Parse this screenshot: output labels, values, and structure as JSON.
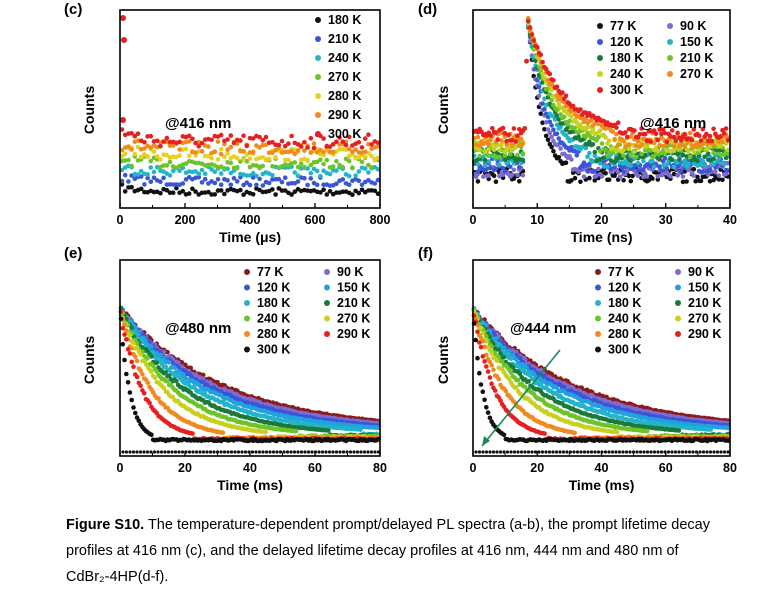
{
  "caption": {
    "label": "Figure S10.",
    "text": "The temperature-dependent prompt/delayed PL spectra (a-b), the prompt lifetime decay profiles at 416 nm (c), and the delayed lifetime decay profiles at 416 nm, 444 nm and 480 nm of CdBr₂-4HP(d-f)."
  },
  "chart_data": [
    {
      "panel": "(c)",
      "type": "scatter",
      "annotation": "@416 nm",
      "xlabel": "Time (μs)",
      "ylabel": "Counts",
      "xlim": [
        0,
        800
      ],
      "xticks": [
        "0",
        "200",
        "400",
        "600",
        "800"
      ],
      "legend": "top-right",
      "series": [
        {
          "name": "180 K",
          "color": "#111111",
          "level": 0.05
        },
        {
          "name": "210 K",
          "color": "#3a56d4",
          "level": 0.11
        },
        {
          "name": "240 K",
          "color": "#22b4c8",
          "level": 0.17
        },
        {
          "name": "270 K",
          "color": "#6cc428",
          "level": 0.22
        },
        {
          "name": "280 K",
          "color": "#e8d020",
          "level": 0.27
        },
        {
          "name": "290 K",
          "color": "#f08a1c",
          "level": 0.31
        },
        {
          "name": "300 K",
          "color": "#e52020",
          "level": 0.35
        }
      ]
    },
    {
      "panel": "(d)",
      "type": "scatter",
      "annotation": "@416 nm",
      "xlabel": "Time (ns)",
      "ylabel": "Counts",
      "xlim": [
        0,
        40
      ],
      "xticks": [
        "0",
        "10",
        "20",
        "30",
        "40"
      ],
      "peak_x": 8.5,
      "legend": "top-right",
      "series": [
        {
          "name": "77 K",
          "color": "#111111"
        },
        {
          "name": "90 K",
          "color": "#7f6bd0"
        },
        {
          "name": "120 K",
          "color": "#3a56d4"
        },
        {
          "name": "150 K",
          "color": "#22b4c8"
        },
        {
          "name": "180 K",
          "color": "#1a7a3a"
        },
        {
          "name": "210 K",
          "color": "#6cc428"
        },
        {
          "name": "240 K",
          "color": "#c8d020"
        },
        {
          "name": "270 K",
          "color": "#f08a1c"
        },
        {
          "name": "300 K",
          "color": "#e52020"
        }
      ]
    },
    {
      "panel": "(e)",
      "type": "scatter",
      "annotation": "@480 nm",
      "xlabel": "Time (ms)",
      "ylabel": "Counts",
      "xlim": [
        0,
        80
      ],
      "xticks": [
        "0",
        "20",
        "40",
        "60",
        "80"
      ],
      "legend": "top-right",
      "series": [
        {
          "name": "77 K",
          "color": "#8b1a1a",
          "tau": 32
        },
        {
          "name": "90 K",
          "color": "#7f6bd0",
          "tau": 30
        },
        {
          "name": "120 K",
          "color": "#3a56d4",
          "tau": 28
        },
        {
          "name": "150 K",
          "color": "#22a0e0",
          "tau": 26
        },
        {
          "name": "180 K",
          "color": "#22b4c8",
          "tau": 23
        },
        {
          "name": "210 K",
          "color": "#1a7a3a",
          "tau": 20
        },
        {
          "name": "240 K",
          "color": "#6cc428",
          "tau": 17
        },
        {
          "name": "270 K",
          "color": "#c8d020",
          "tau": 14
        },
        {
          "name": "280 K",
          "color": "#f08a1c",
          "tau": 10
        },
        {
          "name": "290 K",
          "color": "#e52020",
          "tau": 7
        },
        {
          "name": "300 K",
          "color": "#111111",
          "tau": 3
        }
      ]
    },
    {
      "panel": "(f)",
      "type": "scatter",
      "annotation": "@444 nm",
      "xlabel": "Time (ms)",
      "ylabel": "Counts",
      "xlim": [
        0,
        80
      ],
      "xticks": [
        "0",
        "20",
        "40",
        "60",
        "80"
      ],
      "legend": "top-right",
      "series": [
        {
          "name": "77 K",
          "color": "#8b1a1a",
          "tau": 32
        },
        {
          "name": "90 K",
          "color": "#7f6bd0",
          "tau": 30
        },
        {
          "name": "120 K",
          "color": "#3a56d4",
          "tau": 28
        },
        {
          "name": "150 K",
          "color": "#22a0e0",
          "tau": 26
        },
        {
          "name": "180 K",
          "color": "#22b4c8",
          "tau": 23
        },
        {
          "name": "210 K",
          "color": "#1a7a3a",
          "tau": 20
        },
        {
          "name": "240 K",
          "color": "#6cc428",
          "tau": 17
        },
        {
          "name": "270 K",
          "color": "#c8d020",
          "tau": 14
        },
        {
          "name": "280 K",
          "color": "#f08a1c",
          "tau": 10
        },
        {
          "name": "290 K",
          "color": "#e52020",
          "tau": 7
        },
        {
          "name": "300 K",
          "color": "#111111",
          "tau": 3
        }
      ],
      "arrow_color": "#1a8a5a"
    }
  ]
}
